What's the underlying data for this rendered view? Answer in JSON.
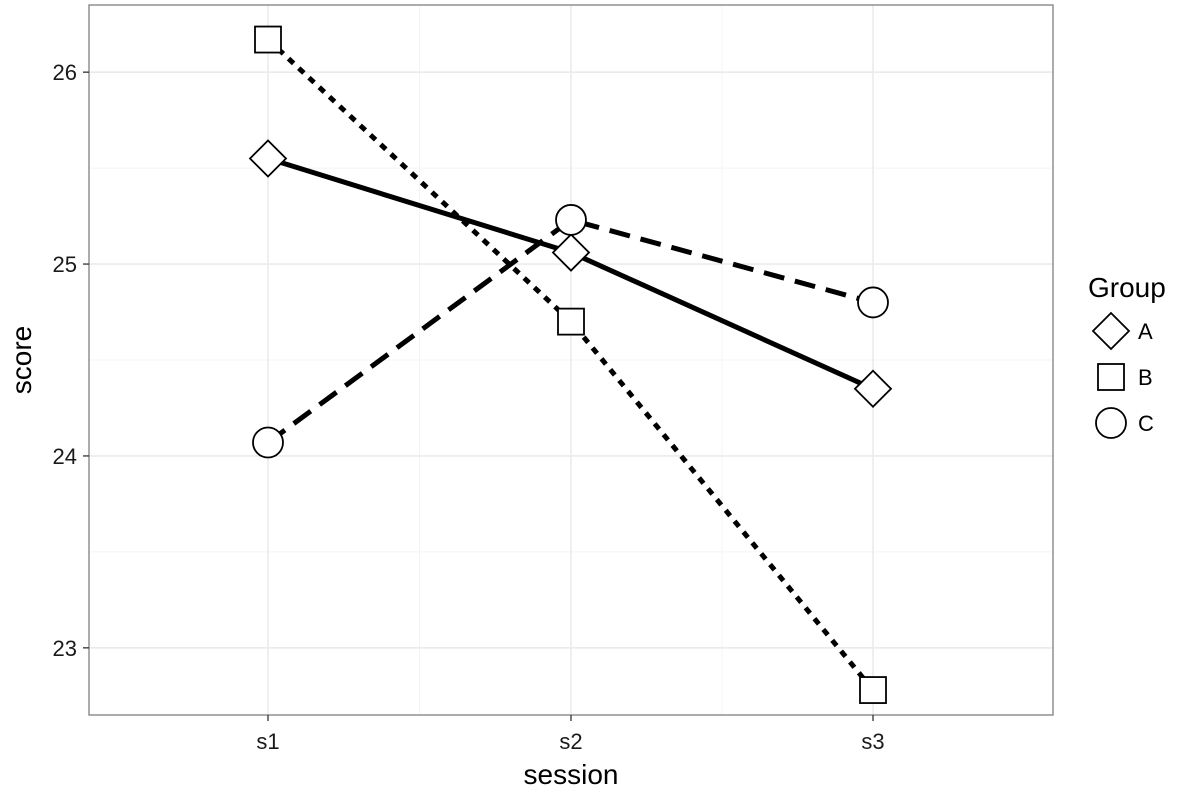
{
  "chart_data": {
    "type": "line",
    "title": "",
    "xlabel": "session",
    "ylabel": "score",
    "categories": [
      "s1",
      "s2",
      "s3"
    ],
    "ylim": [
      22.65,
      26.35
    ],
    "yticks": [
      23,
      24,
      25,
      26
    ],
    "grid": true,
    "legend": {
      "title": "Group",
      "placement": "right"
    },
    "series": [
      {
        "name": "A",
        "values": [
          25.55,
          25.06,
          24.35
        ],
        "marker": "diamond",
        "line": "solid"
      },
      {
        "name": "B",
        "values": [
          26.17,
          24.7,
          22.78
        ],
        "marker": "square",
        "line": "dotted"
      },
      {
        "name": "C",
        "values": [
          24.07,
          25.23,
          24.8
        ],
        "marker": "circle",
        "line": "dashed"
      }
    ],
    "colors": {
      "line": "#000000",
      "marker_fill": "#ffffff",
      "panel_border": "#7f7f7f",
      "grid_major": "#ebebeb",
      "grid_minor": "#f4f4f4"
    }
  }
}
